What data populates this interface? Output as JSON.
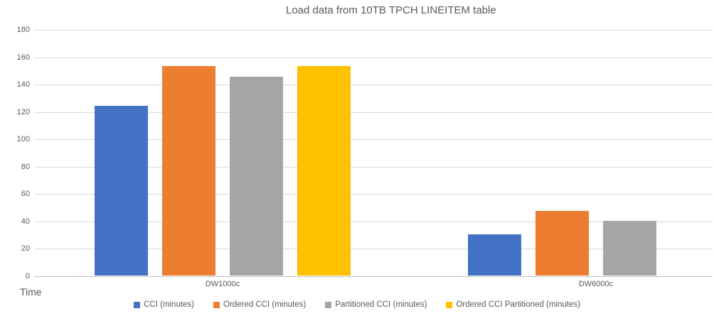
{
  "chart_data": {
    "type": "bar",
    "title": "Load data from 10TB TPCH LINEITEM table",
    "categories": [
      "DW1000c",
      "DW6000c"
    ],
    "series": [
      {
        "name": "CCI (minutes)",
        "color": "#4472C4",
        "values": [
          124,
          30
        ]
      },
      {
        "name": "Ordered CCI (minutes)",
        "color": "#ED7D31",
        "values": [
          153,
          47
        ]
      },
      {
        "name": "Partitioned CCI (minutes)",
        "color": "#A5A5A5",
        "values": [
          145,
          40
        ]
      },
      {
        "name": "Ordered CCI Partitioned (minutes)",
        "color": "#FFC000",
        "values": [
          153,
          null
        ]
      }
    ],
    "xlabel": "",
    "ylabel": "Time",
    "ylim": [
      0,
      180
    ],
    "ytick_step": 20,
    "yticks": [
      0,
      20,
      40,
      60,
      80,
      100,
      120,
      140,
      160,
      180
    ],
    "grid": true,
    "legend_position": "bottom"
  },
  "styles": {
    "text_color": "#595959",
    "gridline_color": "#D9D9D9",
    "axis_line_color": "#BFBFBF",
    "background_color": "#FFFFFF"
  }
}
